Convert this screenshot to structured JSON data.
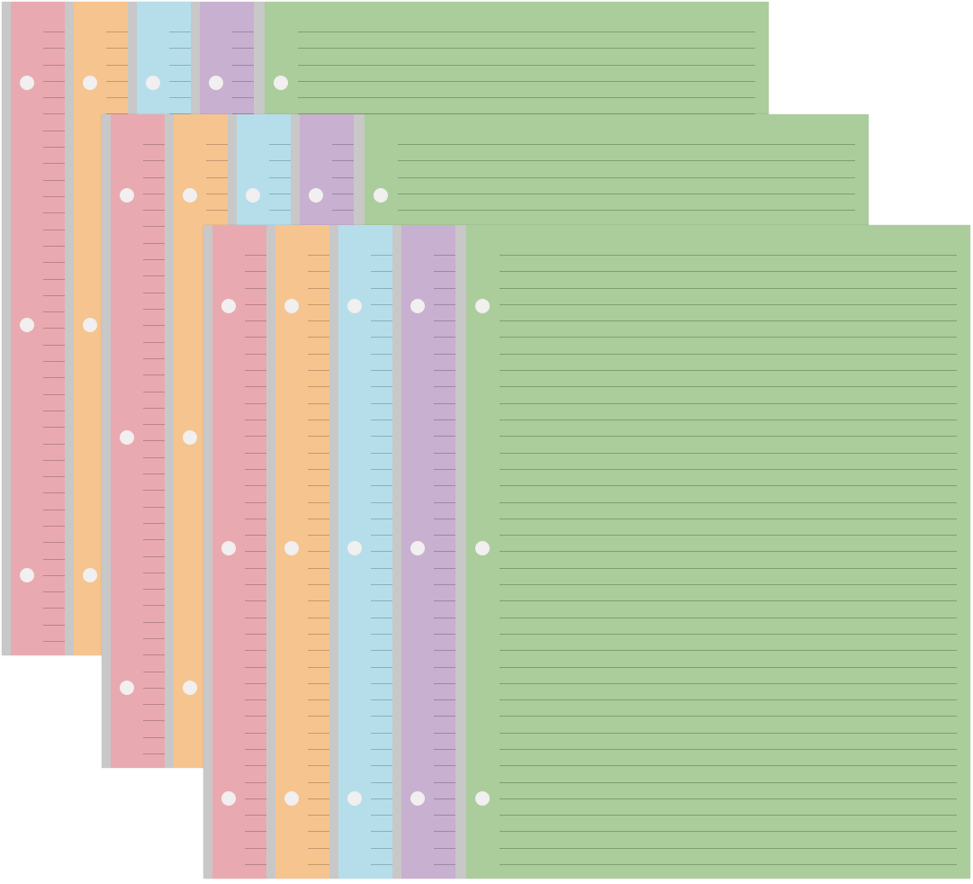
{
  "product": {
    "sets": 3,
    "sheet_colors": [
      {
        "name": "pink",
        "fill": "#e8aab0",
        "line": "#b98489"
      },
      {
        "name": "orange",
        "fill": "#f6c48f",
        "line": "#c59a6d"
      },
      {
        "name": "blue",
        "fill": "#b6deea",
        "line": "#8cb0bb"
      },
      {
        "name": "purple",
        "fill": "#c8b0d0",
        "line": "#9d88a5"
      },
      {
        "name": "green",
        "fill": "#abcd9b",
        "line": "#7f9f72"
      }
    ],
    "margin_color": "#c8c8c8",
    "hole_color": "#f1efef",
    "holes_per_sheet": 3
  }
}
